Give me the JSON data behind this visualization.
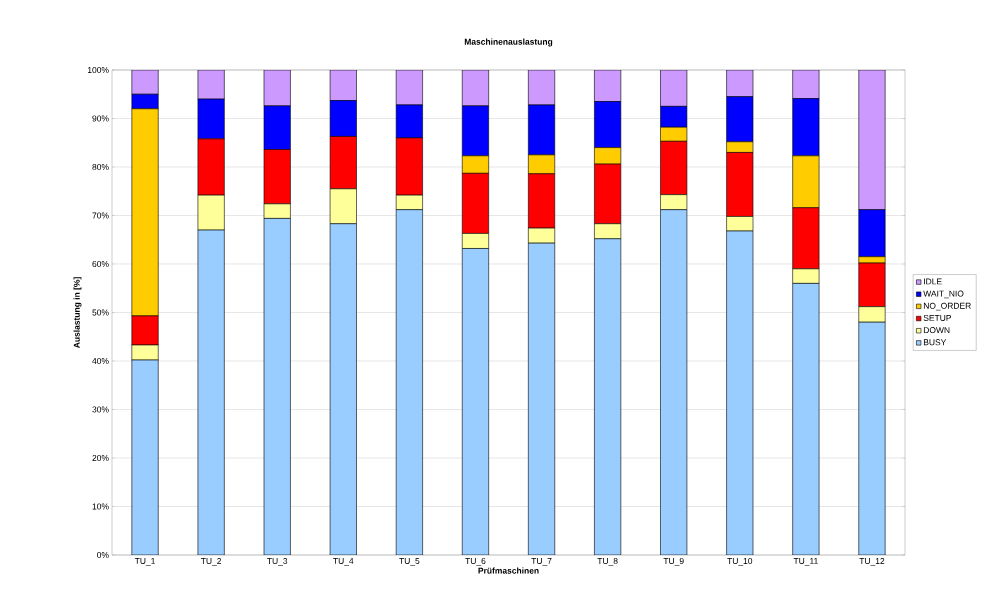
{
  "chart_data": {
    "type": "bar",
    "title": "Maschinenauslastung",
    "xlabel": "Prüfmaschinen",
    "ylabel": "Auslastung in [%]",
    "categories": [
      "TU_1",
      "TU_2",
      "TU_3",
      "TU_4",
      "TU_5",
      "TU_6",
      "TU_7",
      "TU_8",
      "TU_9",
      "TU_10",
      "TU_11",
      "TU_12"
    ],
    "stacked": true,
    "series": [
      {
        "name": "BUSY",
        "color": "#99ccff",
        "values": [
          40.2,
          67,
          69.4,
          68.3,
          71.2,
          63.2,
          64.3,
          65.2,
          71.2,
          66.8,
          56,
          48
        ]
      },
      {
        "name": "DOWN",
        "color": "#ffff99",
        "values": [
          3.1,
          7.2,
          3,
          7.2,
          3,
          3.1,
          3.1,
          3.1,
          3.1,
          3,
          3,
          3.2
        ]
      },
      {
        "name": "SETUP",
        "color": "#ff0000",
        "values": [
          6,
          11.6,
          11.2,
          10.8,
          11.8,
          12.4,
          11.2,
          12.3,
          11,
          13.2,
          12.6,
          9
        ]
      },
      {
        "name": "NO_ORDER",
        "color": "#ffcc00",
        "values": [
          42.7,
          0,
          0,
          0,
          0,
          3.6,
          3.9,
          3.4,
          2.9,
          2.2,
          10.7,
          1.3
        ]
      },
      {
        "name": "WAIT_NIO",
        "color": "#0000ff",
        "values": [
          3,
          8.2,
          9,
          7.4,
          6.8,
          10.3,
          10.3,
          9.5,
          4.3,
          9.3,
          11.8,
          9.7
        ]
      },
      {
        "name": "IDLE",
        "color": "#cc99ff",
        "values": [
          5,
          6,
          7.4,
          6.3,
          7.2,
          7.4,
          7.2,
          6.5,
          7.5,
          5.5,
          5.9,
          28.8
        ]
      }
    ],
    "ylim": [
      0,
      100
    ],
    "yticks": [
      {
        "value": 0,
        "label": "0%"
      },
      {
        "value": 10,
        "label": "10%"
      },
      {
        "value": 20,
        "label": "20%"
      },
      {
        "value": 30,
        "label": "30%"
      },
      {
        "value": 40,
        "label": "40%"
      },
      {
        "value": 50,
        "label": "50%"
      },
      {
        "value": 60,
        "label": "60%"
      },
      {
        "value": 70,
        "label": "70%"
      },
      {
        "value": 80,
        "label": "80%"
      },
      {
        "value": 90,
        "label": "90%"
      },
      {
        "value": 100,
        "label": "100%"
      }
    ],
    "grid": "y",
    "legend": "right"
  }
}
